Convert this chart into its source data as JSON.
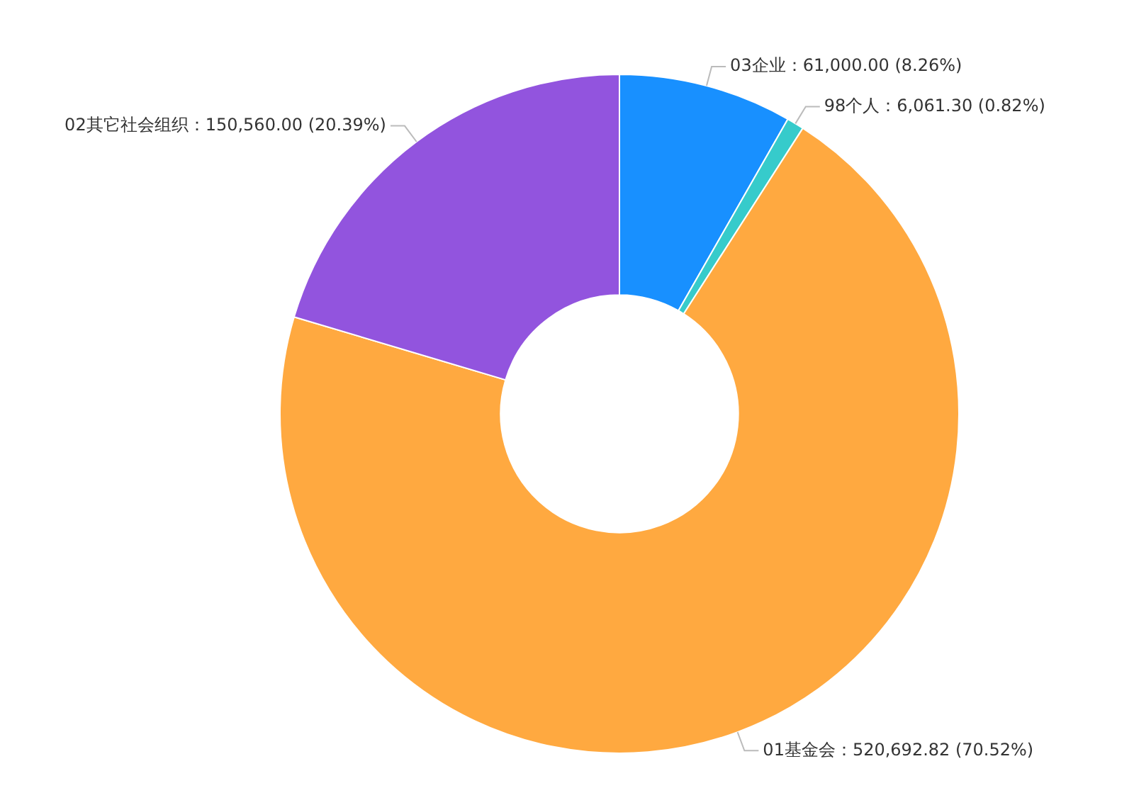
{
  "chart_data": {
    "type": "donut",
    "categories": [
      "03企业",
      "98个人",
      "01基金会",
      "02其它社会组织"
    ],
    "values": [
      61000.0,
      6061.3,
      520692.82,
      150560.0
    ],
    "colors": [
      "#1890ff",
      "#36cbcb",
      "#ffa940",
      "#9254de"
    ],
    "value_labels": [
      "61,000.00 (8.26%)",
      "6,061.30 (0.82%)",
      "520,692.82 (70.52%)",
      "150,560.00 (20.39%)"
    ]
  }
}
